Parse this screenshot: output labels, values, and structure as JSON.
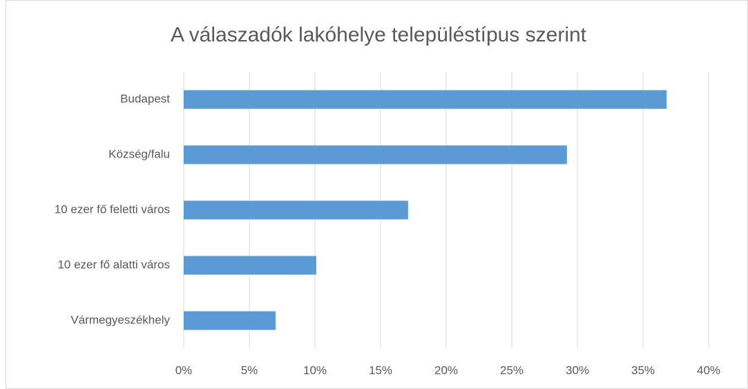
{
  "chart_data": {
    "type": "bar",
    "orientation": "horizontal",
    "title": "A válaszadók lakóhelye településtípus szerint",
    "categories": [
      "Budapest",
      "Község/falu",
      "10 ezer fő feletti város",
      "10 ezer fő alatti város",
      "Vármegyeszékhely"
    ],
    "values": [
      36.8,
      29.2,
      17.1,
      10.1,
      7.0
    ],
    "color": "#5b9bd5",
    "xlim": [
      0,
      40
    ],
    "xticks": [
      {
        "value": 0,
        "label": "0%"
      },
      {
        "value": 5,
        "label": "5%"
      },
      {
        "value": 10,
        "label": "10%"
      },
      {
        "value": 15,
        "label": "15%"
      },
      {
        "value": 20,
        "label": "20%"
      },
      {
        "value": 25,
        "label": "25%"
      },
      {
        "value": 30,
        "label": "30%"
      },
      {
        "value": 35,
        "label": "35%"
      },
      {
        "value": 40,
        "label": "40%"
      }
    ],
    "grid": true
  }
}
